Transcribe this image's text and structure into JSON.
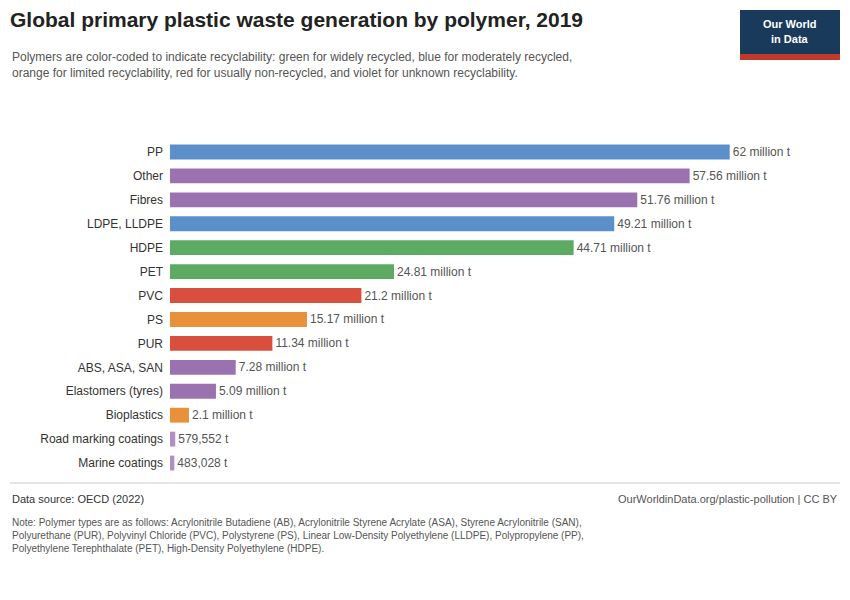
{
  "chart_data": {
    "type": "bar",
    "orientation": "horizontal",
    "title": "Global primary plastic waste generation by polymer, 2019",
    "subtitle": "Polymers are color-coded to indicate recyclability: green for widely recycled, blue for moderately recycled,\norange for limited recyclability, red for usually non-recycled, and violet for unknown recyclability.",
    "categories": [
      "PP",
      "Other",
      "Fibres",
      "LDPE, LLDPE",
      "HDPE",
      "PET",
      "PVC",
      "PS",
      "PUR",
      "ABS, ASA, SAN",
      "Elastomers (tyres)",
      "Bioplastics",
      "Road marking coatings",
      "Marine coatings"
    ],
    "values": [
      62,
      57.56,
      51.76,
      49.21,
      44.71,
      24.81,
      21.2,
      15.17,
      11.34,
      7.28,
      5.09,
      2.1,
      0.579552,
      0.483028
    ],
    "value_labels": [
      "62 million t",
      "57.56 million t",
      "51.76 million t",
      "49.21 million t",
      "44.71 million t",
      "24.81 million t",
      "21.2 million t",
      "15.17 million t",
      "11.34 million t",
      "7.28 million t",
      "5.09 million t",
      "2.1 million t",
      "579,552 t",
      "483,028 t"
    ],
    "colors": [
      "#5b8fc9",
      "#9b72b0",
      "#9b72b0",
      "#5b8fc9",
      "#5daa63",
      "#5daa63",
      "#d94f3d",
      "#e8903a",
      "#d94f3d",
      "#9b72b0",
      "#9b72b0",
      "#e8903a",
      "#b090c0",
      "#b090c0"
    ],
    "data_labels": true,
    "tick_labels": "y",
    "grid": false,
    "xlim": [
      0,
      72
    ],
    "source": "Data source: OECD (2022)",
    "url": "OurWorldinData.org/plastic-pollution | CC BY",
    "note": "Note: Polymer types are as follows: Acrylonitrile Butadiene (AB), Acrylonitrile Styrene Acrylate (ASA), Styrene Acrylonitrile (SAN),\nPolyurethane (PUR), Polyvinyl Chloride (PVC), Polystyrene (PS), Linear Low-Density Polyethylene (LLDPE), Polypropylene (PP),\nPolyethylene Terephthalate (PET), High-Density Polyethylene (HDPE).",
    "logo": [
      "Our World",
      "in Data"
    ],
    "logo_color": "#1a3a5c",
    "logo_accent_color": "#c0392b"
  }
}
